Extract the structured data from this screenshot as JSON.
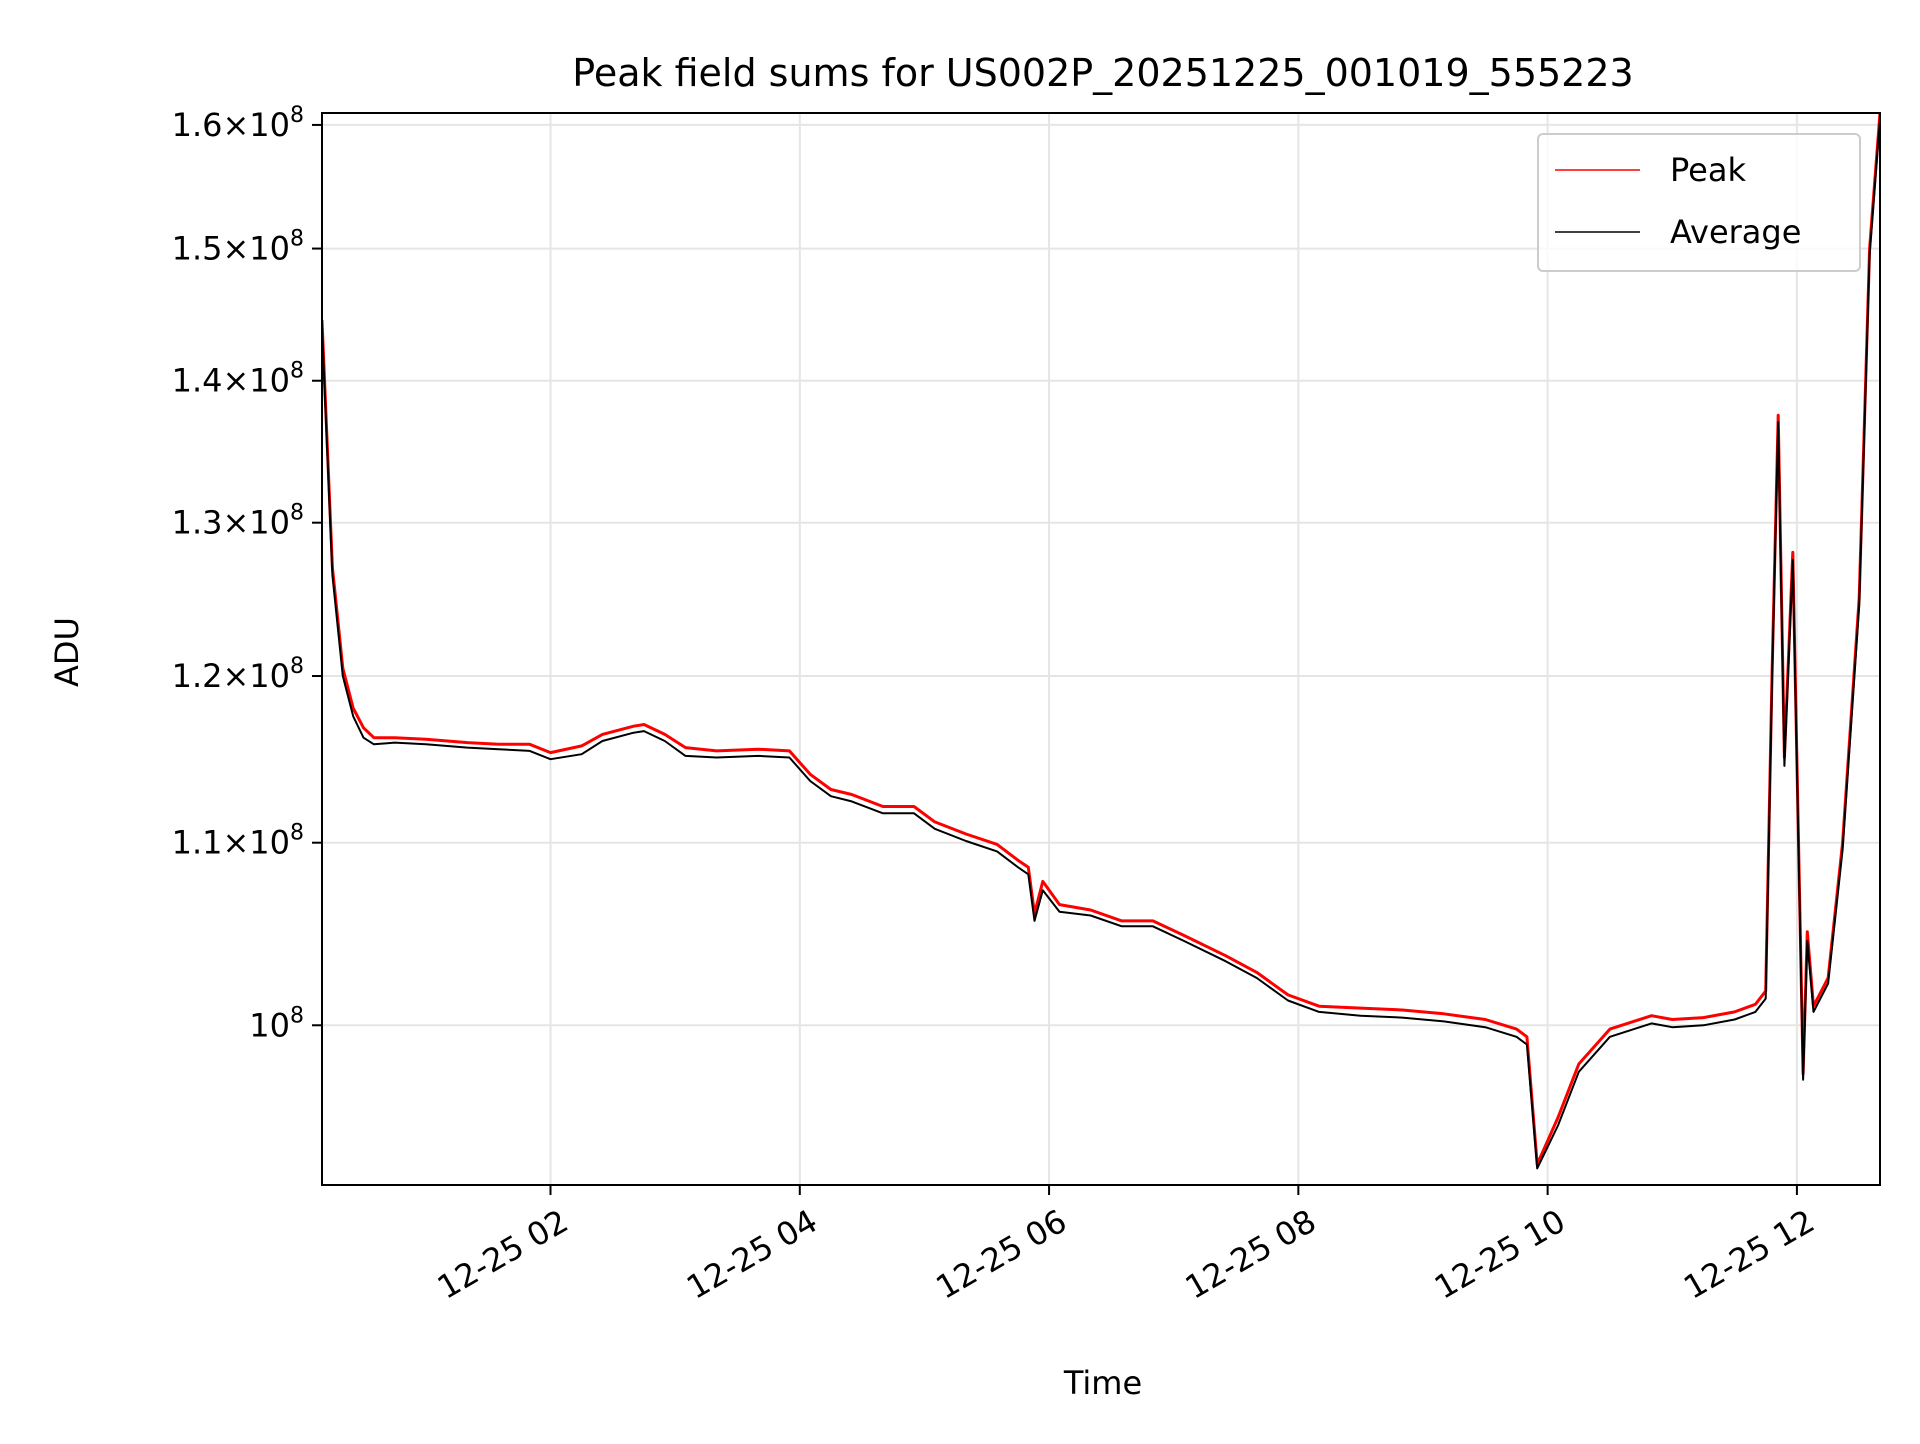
{
  "chart_data": {
    "type": "line",
    "title": "Peak field sums for US002P_20251225_001019_555223",
    "xlabel": "Time",
    "ylabel": "ADU",
    "yscale": "log",
    "xlim": [
      "2025-12-25 00:10",
      "2025-12-25 12:40"
    ],
    "ylim": [
      92000000,
      161000000
    ],
    "grid": true,
    "legend_position": "top-right",
    "x_ticks": [
      {
        "value": "2025-12-25 02:00",
        "label": "12-25 02"
      },
      {
        "value": "2025-12-25 04:00",
        "label": "12-25 04"
      },
      {
        "value": "2025-12-25 06:00",
        "label": "12-25 06"
      },
      {
        "value": "2025-12-25 08:00",
        "label": "12-25 08"
      },
      {
        "value": "2025-12-25 10:00",
        "label": "12-25 10"
      },
      {
        "value": "2025-12-25 12:00",
        "label": "12-25 12"
      }
    ],
    "y_ticks": [
      {
        "value": 100000000,
        "mantissa": "",
        "exponent": "8"
      },
      {
        "value": 110000000,
        "mantissa": "1.1",
        "exponent": "8"
      },
      {
        "value": 120000000,
        "mantissa": "1.2",
        "exponent": "8"
      },
      {
        "value": 130000000,
        "mantissa": "1.3",
        "exponent": "8"
      },
      {
        "value": 140000000,
        "mantissa": "1.4",
        "exponent": "8"
      },
      {
        "value": 150000000,
        "mantissa": "1.5",
        "exponent": "8"
      },
      {
        "value": 160000000,
        "mantissa": "1.6",
        "exponent": "8"
      }
    ],
    "series": [
      {
        "name": "Peak",
        "color": "#ff0000",
        "points": [
          [
            "2025-12-25 00:10",
            144500000
          ],
          [
            "2025-12-25 00:15",
            127000000
          ],
          [
            "2025-12-25 00:20",
            120500000
          ],
          [
            "2025-12-25 00:25",
            118000000
          ],
          [
            "2025-12-25 00:30",
            116800000
          ],
          [
            "2025-12-25 00:35",
            116200000
          ],
          [
            "2025-12-25 00:45",
            116200000
          ],
          [
            "2025-12-25 01:00",
            116100000
          ],
          [
            "2025-12-25 01:20",
            115900000
          ],
          [
            "2025-12-25 01:35",
            115800000
          ],
          [
            "2025-12-25 01:50",
            115800000
          ],
          [
            "2025-12-25 02:00",
            115300000
          ],
          [
            "2025-12-25 02:15",
            115700000
          ],
          [
            "2025-12-25 02:25",
            116400000
          ],
          [
            "2025-12-25 02:40",
            116900000
          ],
          [
            "2025-12-25 02:45",
            117000000
          ],
          [
            "2025-12-25 02:55",
            116400000
          ],
          [
            "2025-12-25 03:05",
            115600000
          ],
          [
            "2025-12-25 03:20",
            115400000
          ],
          [
            "2025-12-25 03:40",
            115500000
          ],
          [
            "2025-12-25 03:55",
            115400000
          ],
          [
            "2025-12-25 04:05",
            114000000
          ],
          [
            "2025-12-25 04:15",
            113100000
          ],
          [
            "2025-12-25 04:25",
            112800000
          ],
          [
            "2025-12-25 04:40",
            112100000
          ],
          [
            "2025-12-25 04:55",
            112100000
          ],
          [
            "2025-12-25 05:05",
            111200000
          ],
          [
            "2025-12-25 05:20",
            110500000
          ],
          [
            "2025-12-25 05:35",
            109900000
          ],
          [
            "2025-12-25 05:45",
            109000000
          ],
          [
            "2025-12-25 05:50",
            108600000
          ],
          [
            "2025-12-25 05:53",
            106000000
          ],
          [
            "2025-12-25 05:57",
            107800000
          ],
          [
            "2025-12-25 06:05",
            106500000
          ],
          [
            "2025-12-25 06:20",
            106200000
          ],
          [
            "2025-12-25 06:35",
            105600000
          ],
          [
            "2025-12-25 06:50",
            105600000
          ],
          [
            "2025-12-25 07:05",
            104800000
          ],
          [
            "2025-12-25 07:25",
            103700000
          ],
          [
            "2025-12-25 07:40",
            102800000
          ],
          [
            "2025-12-25 07:55",
            101600000
          ],
          [
            "2025-12-25 08:10",
            101000000
          ],
          [
            "2025-12-25 08:30",
            100900000
          ],
          [
            "2025-12-25 08:50",
            100800000
          ],
          [
            "2025-12-25 09:10",
            100600000
          ],
          [
            "2025-12-25 09:30",
            100300000
          ],
          [
            "2025-12-25 09:45",
            99800000
          ],
          [
            "2025-12-25 09:50",
            99400000
          ],
          [
            "2025-12-25 09:55",
            93000000
          ],
          [
            "2025-12-25 10:05",
            95300000
          ],
          [
            "2025-12-25 10:15",
            98000000
          ],
          [
            "2025-12-25 10:30",
            99800000
          ],
          [
            "2025-12-25 10:50",
            100500000
          ],
          [
            "2025-12-25 11:00",
            100300000
          ],
          [
            "2025-12-25 11:15",
            100400000
          ],
          [
            "2025-12-25 11:30",
            100700000
          ],
          [
            "2025-12-25 11:40",
            101100000
          ],
          [
            "2025-12-25 11:45",
            101800000
          ],
          [
            "2025-12-25 11:48",
            120000000
          ],
          [
            "2025-12-25 11:51",
            137500000
          ],
          [
            "2025-12-25 11:54",
            115000000
          ],
          [
            "2025-12-25 11:58",
            128000000
          ],
          [
            "2025-12-25 12:03",
            97500000
          ],
          [
            "2025-12-25 12:05",
            105000000
          ],
          [
            "2025-12-25 12:08",
            101000000
          ],
          [
            "2025-12-25 12:15",
            102500000
          ],
          [
            "2025-12-25 12:22",
            110000000
          ],
          [
            "2025-12-25 12:30",
            125000000
          ],
          [
            "2025-12-25 12:35",
            150000000
          ],
          [
            "2025-12-25 12:40",
            161000000
          ]
        ]
      },
      {
        "name": "Average",
        "color": "#000000",
        "points": [
          [
            "2025-12-25 00:10",
            144000000
          ],
          [
            "2025-12-25 00:15",
            126500000
          ],
          [
            "2025-12-25 00:20",
            120000000
          ],
          [
            "2025-12-25 00:25",
            117500000
          ],
          [
            "2025-12-25 00:30",
            116200000
          ],
          [
            "2025-12-25 00:35",
            115800000
          ],
          [
            "2025-12-25 00:45",
            115900000
          ],
          [
            "2025-12-25 01:00",
            115800000
          ],
          [
            "2025-12-25 01:20",
            115600000
          ],
          [
            "2025-12-25 01:35",
            115500000
          ],
          [
            "2025-12-25 01:50",
            115400000
          ],
          [
            "2025-12-25 02:00",
            114900000
          ],
          [
            "2025-12-25 02:15",
            115200000
          ],
          [
            "2025-12-25 02:25",
            116000000
          ],
          [
            "2025-12-25 02:40",
            116500000
          ],
          [
            "2025-12-25 02:45",
            116600000
          ],
          [
            "2025-12-25 02:55",
            116000000
          ],
          [
            "2025-12-25 03:05",
            115100000
          ],
          [
            "2025-12-25 03:20",
            115000000
          ],
          [
            "2025-12-25 03:40",
            115100000
          ],
          [
            "2025-12-25 03:55",
            115000000
          ],
          [
            "2025-12-25 04:05",
            113600000
          ],
          [
            "2025-12-25 04:15",
            112700000
          ],
          [
            "2025-12-25 04:25",
            112400000
          ],
          [
            "2025-12-25 04:40",
            111700000
          ],
          [
            "2025-12-25 04:55",
            111700000
          ],
          [
            "2025-12-25 05:05",
            110800000
          ],
          [
            "2025-12-25 05:20",
            110100000
          ],
          [
            "2025-12-25 05:35",
            109500000
          ],
          [
            "2025-12-25 05:45",
            108600000
          ],
          [
            "2025-12-25 05:50",
            108200000
          ],
          [
            "2025-12-25 05:53",
            105600000
          ],
          [
            "2025-12-25 05:57",
            107300000
          ],
          [
            "2025-12-25 06:05",
            106100000
          ],
          [
            "2025-12-25 06:20",
            105900000
          ],
          [
            "2025-12-25 06:35",
            105300000
          ],
          [
            "2025-12-25 06:50",
            105300000
          ],
          [
            "2025-12-25 07:05",
            104500000
          ],
          [
            "2025-12-25 07:25",
            103400000
          ],
          [
            "2025-12-25 07:40",
            102500000
          ],
          [
            "2025-12-25 07:55",
            101300000
          ],
          [
            "2025-12-25 08:10",
            100700000
          ],
          [
            "2025-12-25 08:30",
            100500000
          ],
          [
            "2025-12-25 08:50",
            100400000
          ],
          [
            "2025-12-25 09:10",
            100200000
          ],
          [
            "2025-12-25 09:30",
            99900000
          ],
          [
            "2025-12-25 09:45",
            99400000
          ],
          [
            "2025-12-25 09:50",
            99000000
          ],
          [
            "2025-12-25 09:55",
            92800000
          ],
          [
            "2025-12-25 10:05",
            94900000
          ],
          [
            "2025-12-25 10:15",
            97600000
          ],
          [
            "2025-12-25 10:30",
            99400000
          ],
          [
            "2025-12-25 10:50",
            100100000
          ],
          [
            "2025-12-25 11:00",
            99900000
          ],
          [
            "2025-12-25 11:15",
            100000000
          ],
          [
            "2025-12-25 11:30",
            100300000
          ],
          [
            "2025-12-25 11:40",
            100700000
          ],
          [
            "2025-12-25 11:45",
            101400000
          ],
          [
            "2025-12-25 11:48",
            119500000
          ],
          [
            "2025-12-25 11:51",
            137000000
          ],
          [
            "2025-12-25 11:54",
            114500000
          ],
          [
            "2025-12-25 11:58",
            127500000
          ],
          [
            "2025-12-25 12:03",
            97200000
          ],
          [
            "2025-12-25 12:05",
            104500000
          ],
          [
            "2025-12-25 12:08",
            100700000
          ],
          [
            "2025-12-25 12:15",
            102200000
          ],
          [
            "2025-12-25 12:22",
            109600000
          ],
          [
            "2025-12-25 12:30",
            124500000
          ],
          [
            "2025-12-25 12:35",
            149500000
          ],
          [
            "2025-12-25 12:40",
            160500000
          ]
        ]
      }
    ]
  }
}
